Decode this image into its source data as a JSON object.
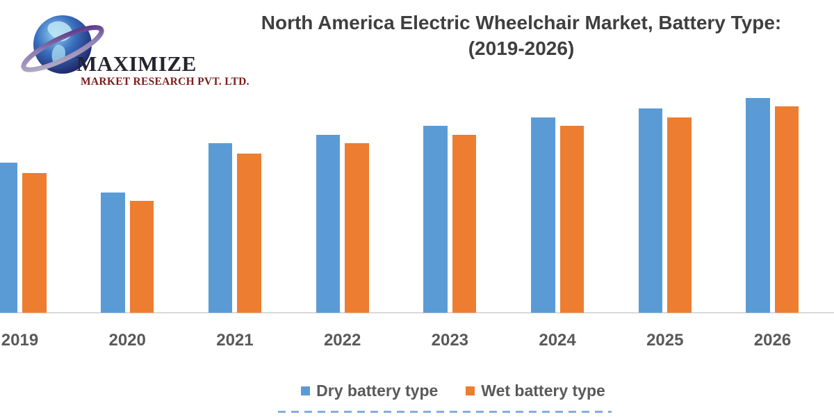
{
  "logo": {
    "brand": "MAXIMIZE",
    "subtitle": "MARKET RESEARCH PVT. LTD.",
    "globe_icon": "globe-with-orbit-swoosh",
    "colors": {
      "brand_text": "#24242e",
      "subtitle_text": "#7d1b1b",
      "globe_blue": "#2e4fa3",
      "swoosh_purple": "#5a2d82"
    }
  },
  "title": {
    "line1": "North America Electric Wheelchair Market, Battery Type:",
    "line2": "(2019-2026)",
    "color": "#3f3f3f"
  },
  "chart_data": {
    "type": "bar",
    "title": "North America Electric Wheelchair Market, Battery Type: (2019-2026)",
    "categories": [
      "2019",
      "2020",
      "2021",
      "2022",
      "2023",
      "2024",
      "2025",
      "2026"
    ],
    "series": [
      {
        "name": "Dry battery type",
        "color": "#5B9BD5",
        "values": [
          70,
          56,
          79,
          83,
          87,
          91,
          95,
          100
        ]
      },
      {
        "name": "Wet battery type",
        "color": "#ED7D31",
        "values": [
          65,
          52,
          74,
          79,
          83,
          87,
          91,
          96
        ]
      }
    ],
    "xlabel": "",
    "ylabel": "",
    "ylim": [
      0,
      100
    ],
    "value_axis_visible": false,
    "values_note": "no value axis shown in source; values are relative index estimates, tallest bar = 100",
    "grid": false,
    "legend_position": "bottom",
    "axis_line_color": "#d9d9d9",
    "category_label_color": "#595959",
    "background": "#ffffff"
  }
}
